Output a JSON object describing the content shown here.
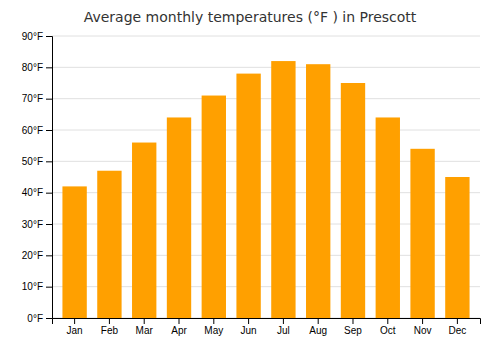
{
  "chart_data": {
    "type": "bar",
    "title": "Average monthly temperatures (°F ) in Prescott",
    "categories": [
      "Jan",
      "Feb",
      "Mar",
      "Apr",
      "May",
      "Jun",
      "Jul",
      "Aug",
      "Sep",
      "Oct",
      "Nov",
      "Dec"
    ],
    "values": [
      42,
      47,
      56,
      64,
      71,
      78,
      82,
      81,
      75,
      64,
      54,
      45
    ],
    "color": "#FFA000",
    "ylim": [
      0,
      90
    ],
    "yticks": [
      {
        "value": 0,
        "label": "0°F"
      },
      {
        "value": 10,
        "label": "10°F"
      },
      {
        "value": 20,
        "label": "20°F"
      },
      {
        "value": 30,
        "label": "30°F"
      },
      {
        "value": 40,
        "label": "40°F"
      },
      {
        "value": 50,
        "label": "50°F"
      },
      {
        "value": 60,
        "label": "60°F"
      },
      {
        "value": 70,
        "label": "70°F"
      },
      {
        "value": 80,
        "label": "80°F"
      },
      {
        "value": 90,
        "label": "90°F"
      }
    ],
    "grid": true
  }
}
